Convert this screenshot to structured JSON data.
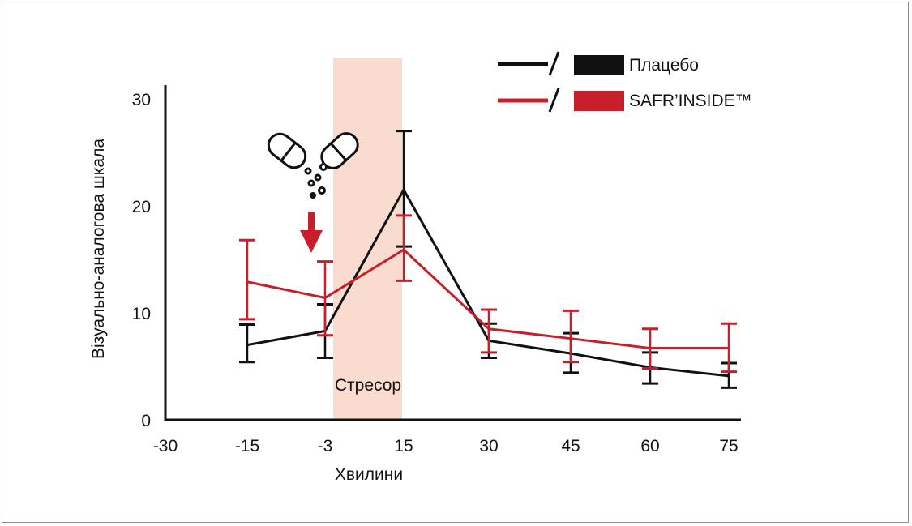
{
  "chart_data": {
    "type": "line",
    "xlabel": "Хвилини",
    "ylabel": "Візуально-аналогова шкала",
    "x": [
      -15,
      -3,
      15,
      30,
      45,
      60,
      75
    ],
    "x_ticks": [
      "-30",
      "-15",
      "-3",
      "15",
      "30",
      "45",
      "60",
      "75"
    ],
    "y_ticks": [
      "0",
      "10",
      "20",
      "30"
    ],
    "ylim": [
      0,
      30
    ],
    "grid": false,
    "legend_position": "top-right",
    "annotations": {
      "stressor": "Стресор"
    },
    "series": [
      {
        "name": "Плацебо",
        "color": "#111111",
        "values": [
          7,
          8.3,
          21.5,
          7.4,
          6.2,
          4.9,
          4.1
        ],
        "err_low": [
          5.4,
          5.8,
          16.2,
          5.8,
          4.4,
          3.4,
          3.0
        ],
        "err_high": [
          8.9,
          10.8,
          27.0,
          9.0,
          8.1,
          6.3,
          5.3
        ]
      },
      {
        "name": "SAFR’INSIDE™",
        "color": "#c8202a",
        "values": [
          12.9,
          11.4,
          15.9,
          8.5,
          7.6,
          6.7,
          6.7
        ],
        "err_low": [
          9.4,
          7.9,
          13.0,
          6.3,
          5.4,
          4.8,
          4.5
        ],
        "err_high": [
          16.8,
          14.8,
          19.1,
          10.3,
          10.2,
          8.5,
          9.0
        ]
      }
    ]
  }
}
